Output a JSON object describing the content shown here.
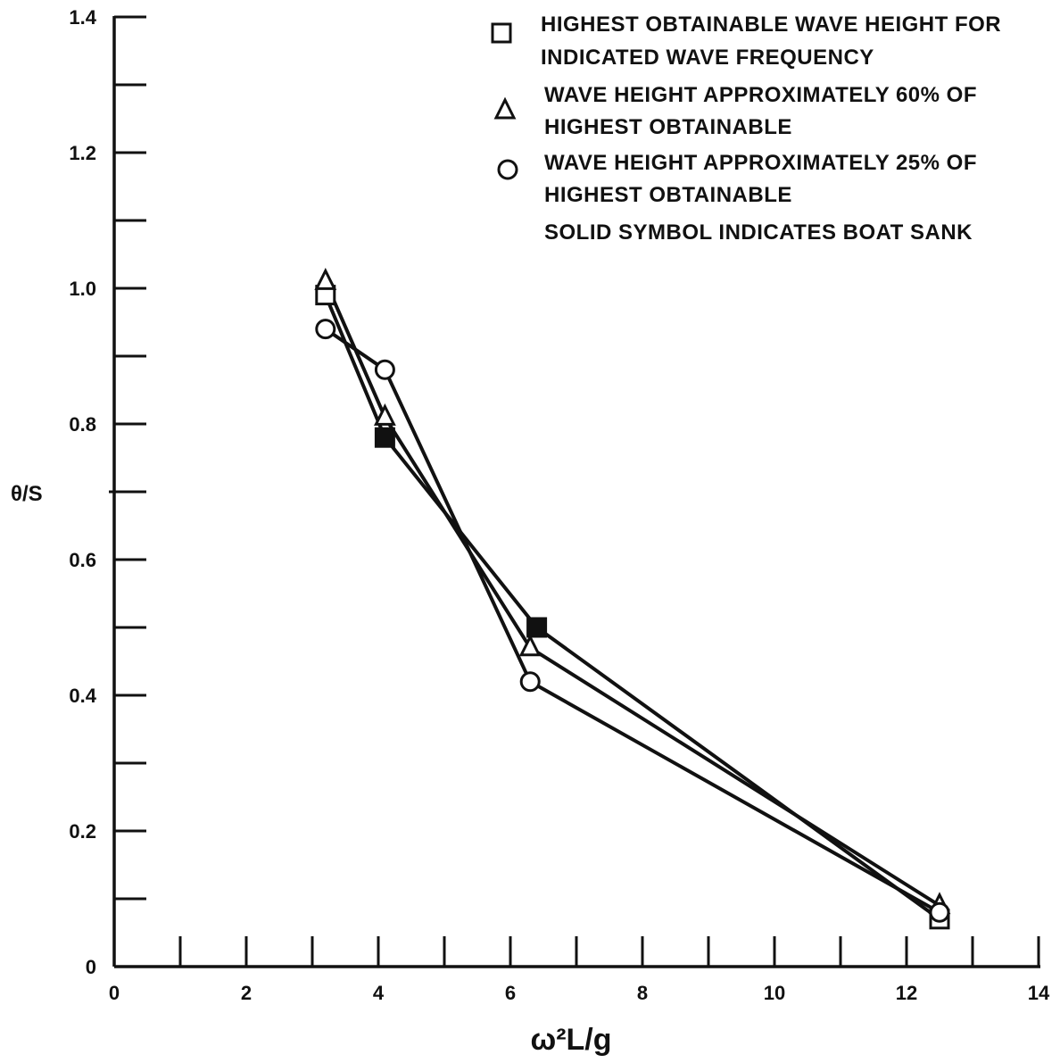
{
  "chart_data": {
    "type": "line",
    "xlabel": "ω²L/g",
    "ylabel": "θ/S",
    "xlim": [
      0,
      14
    ],
    "ylim": [
      0,
      1.4
    ],
    "x_ticks": [
      "0",
      "2",
      "4",
      "6",
      "8",
      "10",
      "12",
      "14"
    ],
    "y_ticks": [
      "0",
      "0.2",
      "0.4",
      "0.6",
      "0.8",
      "1.0",
      "1.2",
      "1.4"
    ],
    "grid": false,
    "legend_position": "top-right",
    "series": [
      {
        "name": "HIGHEST OBTAINABLE WAVE HEIGHT FOR INDICATED WAVE FREQUENCY",
        "marker": "square",
        "x": [
          3.2,
          4.1,
          6.4,
          12.5
        ],
        "y": [
          0.99,
          0.78,
          0.5,
          0.07
        ],
        "solid": [
          false,
          true,
          true,
          false
        ]
      },
      {
        "name": "WAVE HEIGHT APPROXIMATELY 60% OF HIGHEST OBTAINABLE",
        "marker": "triangle",
        "x": [
          3.2,
          4.1,
          6.3,
          12.5
        ],
        "y": [
          1.01,
          0.81,
          0.47,
          0.09
        ],
        "solid": [
          false,
          false,
          false,
          false
        ]
      },
      {
        "name": "WAVE HEIGHT APPROXIMATELY 25% OF HIGHEST OBTAINABLE",
        "marker": "circle",
        "x": [
          3.2,
          4.1,
          6.3,
          12.5
        ],
        "y": [
          0.94,
          0.88,
          0.42,
          0.08
        ],
        "solid": [
          false,
          false,
          false,
          false
        ]
      }
    ],
    "legend": {
      "entries": [
        {
          "marker": "square",
          "lines": [
            "HIGHEST OBTAINABLE WAVE HEIGHT FOR",
            "INDICATED WAVE FREQUENCY"
          ]
        },
        {
          "marker": "triangle",
          "lines": [
            "WAVE HEIGHT APPROXIMATELY 60% OF",
            "HIGHEST OBTAINABLE"
          ]
        },
        {
          "marker": "circle",
          "lines": [
            "WAVE HEIGHT APPROXIMATELY 25% OF",
            "HIGHEST OBTAINABLE"
          ]
        }
      ],
      "note": "SOLID SYMBOL INDICATES BOAT SANK"
    }
  }
}
